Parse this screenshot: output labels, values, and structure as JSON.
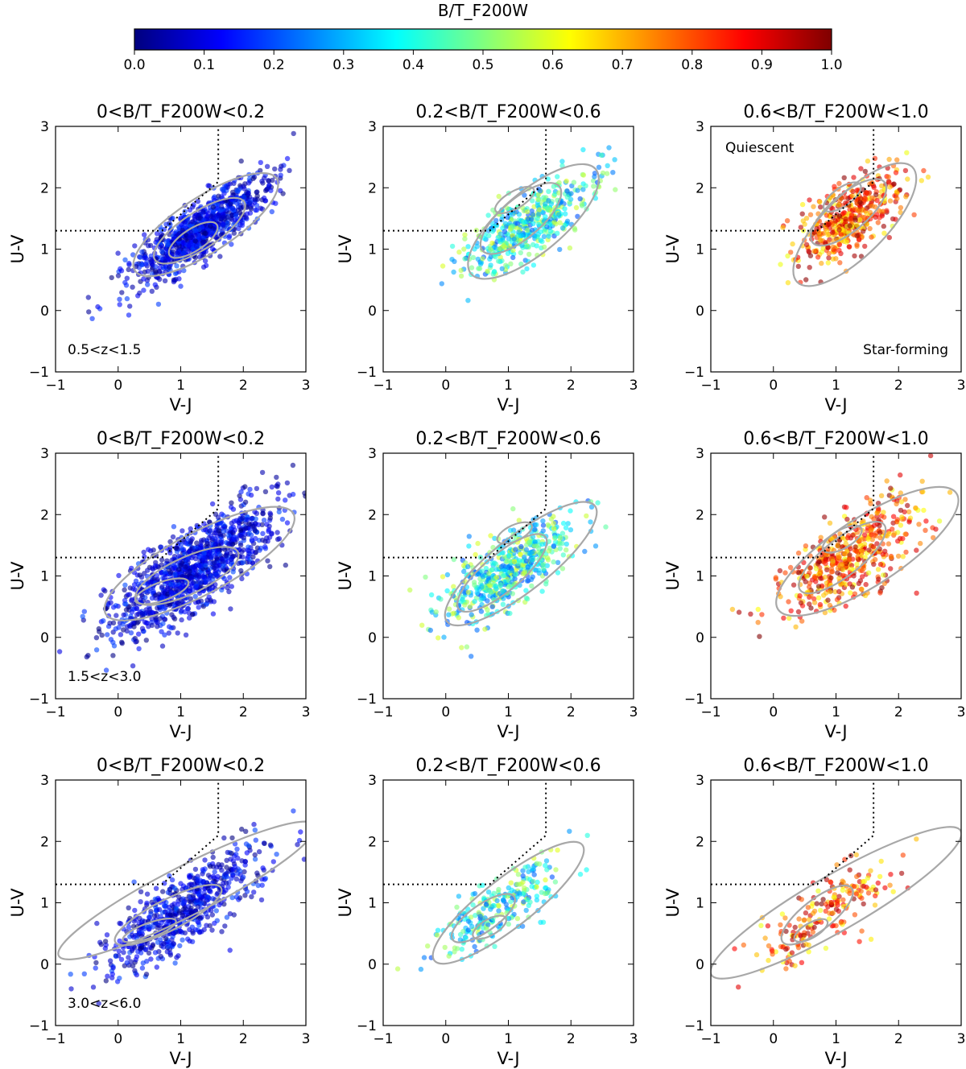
{
  "colorbar": {
    "title": "B/T_F200W",
    "ticks": [
      "0.0",
      "0.1",
      "0.2",
      "0.3",
      "0.4",
      "0.5",
      "0.6",
      "0.7",
      "0.8",
      "0.9",
      "1.0"
    ],
    "colormap": "jet",
    "range": [
      0.0,
      1.0
    ]
  },
  "chart_data": [
    {
      "type": "scatter",
      "title": "0<B/T_F200W<0.2",
      "xlabel": "V-J",
      "ylabel": "U-V",
      "xlim": [
        -1,
        3
      ],
      "ylim": [
        -1,
        3
      ],
      "xticks": [
        "−1",
        "0",
        "1",
        "2",
        "3"
      ],
      "yticks": [
        "−1",
        "0",
        "1",
        "2",
        "3"
      ],
      "annotations": [
        "0.5<z<1.5"
      ],
      "bt_range": [
        0.0,
        0.2
      ],
      "cloud": {
        "center": [
          1.3,
          1.3
        ],
        "spread": [
          0.55,
          0.35
        ],
        "count": 900
      },
      "contours": [
        {
          "center": [
            1.4,
            1.4
          ],
          "rx": 1.35,
          "ry": 0.45,
          "angle_deg": 33
        },
        {
          "center": [
            1.3,
            1.3
          ],
          "rx": 0.85,
          "ry": 0.3,
          "angle_deg": 33
        },
        {
          "center": [
            1.2,
            1.15
          ],
          "rx": 0.45,
          "ry": 0.18,
          "angle_deg": 33
        }
      ],
      "selection_box": {
        "uv_min": 1.3,
        "vj_knee": 0.7,
        "vj_max": 1.6,
        "slope": 0.88,
        "intercept": 0.69
      }
    },
    {
      "type": "scatter",
      "title": "0.2<B/T_F200W<0.6",
      "xlabel": "V-J",
      "ylabel": "U-V",
      "xlim": [
        -1,
        3
      ],
      "ylim": [
        -1,
        3
      ],
      "xticks": [
        "−1",
        "0",
        "1",
        "2",
        "3"
      ],
      "yticks": [
        "−1",
        "0",
        "1",
        "2",
        "3"
      ],
      "annotations": [],
      "bt_range": [
        0.2,
        0.6
      ],
      "cloud": {
        "center": [
          1.3,
          1.4
        ],
        "spread": [
          0.5,
          0.4
        ],
        "count": 500
      },
      "contours": [
        {
          "center": [
            1.4,
            1.45
          ],
          "rx": 1.3,
          "ry": 0.5,
          "angle_deg": 40
        },
        {
          "center": [
            1.2,
            1.5
          ],
          "rx": 0.8,
          "ry": 0.32,
          "angle_deg": 40
        },
        {
          "center": [
            1.1,
            1.8
          ],
          "rx": 0.35,
          "ry": 0.14,
          "angle_deg": 30
        }
      ],
      "selection_box": {
        "uv_min": 1.3,
        "vj_knee": 0.7,
        "vj_max": 1.6,
        "slope": 0.88,
        "intercept": 0.69
      }
    },
    {
      "type": "scatter",
      "title": "0.6<B/T_F200W<1.0",
      "xlabel": "V-J",
      "ylabel": "U-V",
      "xlim": [
        -1,
        3
      ],
      "ylim": [
        -1,
        3
      ],
      "xticks": [
        "−1",
        "0",
        "1",
        "2",
        "3"
      ],
      "yticks": [
        "−1",
        "0",
        "1",
        "2",
        "3"
      ],
      "annotations": [
        "Quiescent",
        "Star-forming"
      ],
      "bt_range": [
        0.6,
        1.0
      ],
      "cloud": {
        "center": [
          1.2,
          1.5
        ],
        "spread": [
          0.45,
          0.45
        ],
        "count": 450
      },
      "contours": [
        {
          "center": [
            1.3,
            1.4
          ],
          "rx": 1.3,
          "ry": 0.5,
          "angle_deg": 45
        },
        {
          "center": [
            1.2,
            1.6
          ],
          "rx": 0.75,
          "ry": 0.3,
          "angle_deg": 40
        },
        {
          "center": [
            1.1,
            1.85
          ],
          "rx": 0.35,
          "ry": 0.15,
          "angle_deg": 35
        }
      ],
      "selection_box": {
        "uv_min": 1.3,
        "vj_knee": 0.7,
        "vj_max": 1.6,
        "slope": 0.88,
        "intercept": 0.69
      }
    },
    {
      "type": "scatter",
      "title": "0<B/T_F200W<0.2",
      "xlabel": "V-J",
      "ylabel": "U-V",
      "xlim": [
        -1,
        3
      ],
      "ylim": [
        -1,
        3
      ],
      "xticks": [
        "−1",
        "0",
        "1",
        "2",
        "3"
      ],
      "yticks": [
        "−1",
        "0",
        "1",
        "2",
        "3"
      ],
      "annotations": [
        "1.5<z<3.0"
      ],
      "bt_range": [
        0.0,
        0.2
      ],
      "cloud": {
        "center": [
          1.2,
          1.1
        ],
        "spread": [
          0.7,
          0.5
        ],
        "count": 1100
      },
      "contours": [
        {
          "center": [
            1.3,
            1.2
          ],
          "rx": 1.7,
          "ry": 0.5,
          "angle_deg": 28
        },
        {
          "center": [
            1.1,
            1.0
          ],
          "rx": 0.9,
          "ry": 0.3,
          "angle_deg": 25
        },
        {
          "center": [
            0.7,
            0.75
          ],
          "rx": 0.45,
          "ry": 0.15,
          "angle_deg": 20
        }
      ],
      "selection_box": {
        "uv_min": 1.3,
        "vj_knee": 0.7,
        "vj_max": 1.6,
        "slope": 0.88,
        "intercept": 0.69
      }
    },
    {
      "type": "scatter",
      "title": "0.2<B/T_F200W<0.6",
      "xlabel": "V-J",
      "ylabel": "U-V",
      "xlim": [
        -1,
        3
      ],
      "ylim": [
        -1,
        3
      ],
      "xticks": [
        "−1",
        "0",
        "1",
        "2",
        "3"
      ],
      "yticks": [
        "−1",
        "0",
        "1",
        "2",
        "3"
      ],
      "annotations": [],
      "bt_range": [
        0.2,
        0.6
      ],
      "cloud": {
        "center": [
          1.0,
          1.1
        ],
        "spread": [
          0.55,
          0.45
        ],
        "count": 550
      },
      "contours": [
        {
          "center": [
            1.2,
            1.2
          ],
          "rx": 1.5,
          "ry": 0.45,
          "angle_deg": 38
        },
        {
          "center": [
            0.9,
            1.05
          ],
          "rx": 0.9,
          "ry": 0.3,
          "angle_deg": 40
        },
        {
          "center": [
            1.1,
            1.7
          ],
          "rx": 0.3,
          "ry": 0.13,
          "angle_deg": 25
        }
      ],
      "selection_box": {
        "uv_min": 1.3,
        "vj_knee": 0.7,
        "vj_max": 1.6,
        "slope": 0.88,
        "intercept": 0.69
      }
    },
    {
      "type": "scatter",
      "title": "0.6<B/T_F200W<1.0",
      "xlabel": "V-J",
      "ylabel": "U-V",
      "xlim": [
        -1,
        3
      ],
      "ylim": [
        -1,
        3
      ],
      "xticks": [
        "−1",
        "0",
        "1",
        "2",
        "3"
      ],
      "yticks": [
        "−1",
        "0",
        "1",
        "2",
        "3"
      ],
      "annotations": [],
      "bt_range": [
        0.6,
        1.0
      ],
      "cloud": {
        "center": [
          1.2,
          1.3
        ],
        "spread": [
          0.55,
          0.5
        ],
        "count": 500
      },
      "contours": [
        {
          "center": [
            1.5,
            1.4
          ],
          "rx": 1.7,
          "ry": 0.55,
          "angle_deg": 33
        },
        {
          "center": [
            1.1,
            1.3
          ],
          "rx": 0.85,
          "ry": 0.3,
          "angle_deg": 38
        },
        {
          "center": [
            1.1,
            1.6
          ],
          "rx": 0.35,
          "ry": 0.15,
          "angle_deg": 30
        }
      ],
      "selection_box": {
        "uv_min": 1.3,
        "vj_knee": 0.7,
        "vj_max": 1.6,
        "slope": 0.88,
        "intercept": 0.69
      }
    },
    {
      "type": "scatter",
      "title": "0<B/T_F200W<0.2",
      "xlabel": "V-J",
      "ylabel": "U-V",
      "xlim": [
        -1,
        3
      ],
      "ylim": [
        -1,
        3
      ],
      "xticks": [
        "−1",
        "0",
        "1",
        "2",
        "3"
      ],
      "yticks": [
        "−1",
        "0",
        "1",
        "2",
        "3"
      ],
      "annotations": [
        "3.0<z<6.0"
      ],
      "bt_range": [
        0.0,
        0.2
      ],
      "cloud": {
        "center": [
          1.0,
          0.9
        ],
        "spread": [
          0.65,
          0.45
        ],
        "count": 650
      },
      "contours": [
        {
          "center": [
            1.1,
            1.2
          ],
          "rx": 2.3,
          "ry": 0.4,
          "angle_deg": 27
        },
        {
          "center": [
            0.8,
            0.8
          ],
          "rx": 0.95,
          "ry": 0.25,
          "angle_deg": 27
        },
        {
          "center": [
            0.5,
            0.55
          ],
          "rx": 0.45,
          "ry": 0.12,
          "angle_deg": 20
        }
      ],
      "selection_box": {
        "uv_min": 1.3,
        "vj_knee": 0.7,
        "vj_max": 1.6,
        "slope": 0.88,
        "intercept": 0.69
      }
    },
    {
      "type": "scatter",
      "title": "0.2<B/T_F200W<0.6",
      "xlabel": "V-J",
      "ylabel": "U-V",
      "xlim": [
        -1,
        3
      ],
      "ylim": [
        -1,
        3
      ],
      "xticks": [
        "−1",
        "0",
        "1",
        "2",
        "3"
      ],
      "yticks": [
        "−1",
        "0",
        "1",
        "2",
        "3"
      ],
      "annotations": [],
      "bt_range": [
        0.2,
        0.6
      ],
      "cloud": {
        "center": [
          0.9,
          0.95
        ],
        "spread": [
          0.5,
          0.4
        ],
        "count": 260
      },
      "contours": [
        {
          "center": [
            1.0,
            1.0
          ],
          "rx": 1.5,
          "ry": 0.4,
          "angle_deg": 38
        },
        {
          "center": [
            0.6,
            0.75
          ],
          "rx": 0.6,
          "ry": 0.22,
          "angle_deg": 35
        },
        {
          "center": [
            0.7,
            0.6
          ],
          "rx": 0.3,
          "ry": 0.13,
          "angle_deg": 30
        }
      ],
      "selection_box": {
        "uv_min": 1.3,
        "vj_knee": 0.7,
        "vj_max": 1.6,
        "slope": 0.88,
        "intercept": 0.69
      }
    },
    {
      "type": "scatter",
      "title": "0.6<B/T_F200W<1.0",
      "xlabel": "V-J",
      "ylabel": "U-V",
      "xlim": [
        -1,
        3
      ],
      "ylim": [
        -1,
        3
      ],
      "xticks": [
        "−1",
        "0",
        "1",
        "2",
        "3"
      ],
      "yticks": [
        "−1",
        "0",
        "1",
        "2",
        "3"
      ],
      "annotations": [],
      "bt_range": [
        0.6,
        1.0
      ],
      "cloud": {
        "center": [
          0.8,
          0.8
        ],
        "spread": [
          0.6,
          0.45
        ],
        "count": 200
      },
      "contours": [
        {
          "center": [
            1.0,
            1.0
          ],
          "rx": 2.3,
          "ry": 0.45,
          "angle_deg": 30
        },
        {
          "center": [
            0.7,
            0.8
          ],
          "rx": 0.7,
          "ry": 0.25,
          "angle_deg": 38
        },
        {
          "center": [
            0.6,
            0.55
          ],
          "rx": 0.3,
          "ry": 0.12,
          "angle_deg": 30
        }
      ],
      "selection_box": {
        "uv_min": 1.3,
        "vj_knee": 0.7,
        "vj_max": 1.6,
        "slope": 0.88,
        "intercept": 0.69
      }
    }
  ]
}
